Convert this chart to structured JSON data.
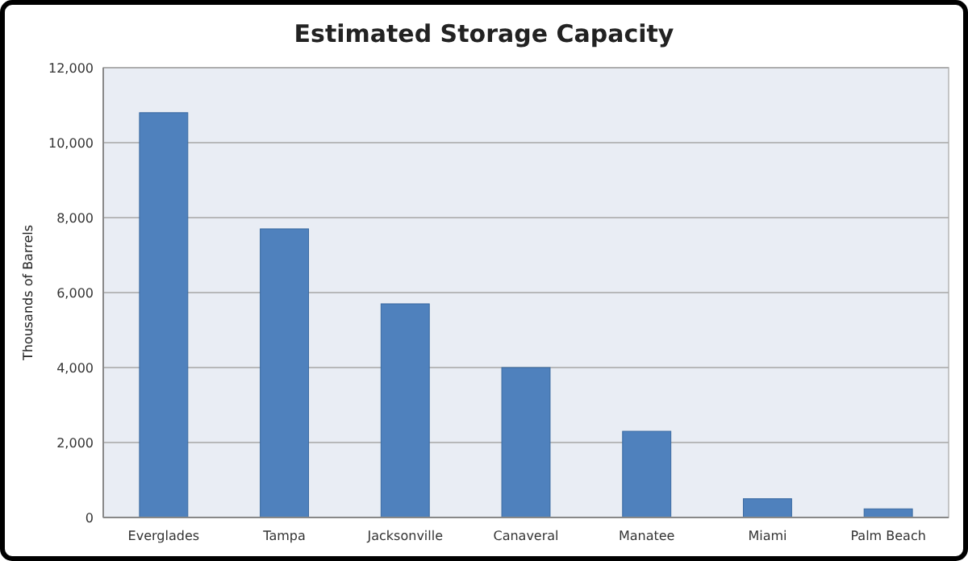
{
  "chart_data": {
    "type": "bar",
    "title": "Estimated Storage Capacity",
    "ylabel": "Thousands of Barrels",
    "categories": [
      "Everglades",
      "Tampa",
      "Jacksonville",
      "Canaveral",
      "Manatee",
      "Miami",
      "Palm Beach"
    ],
    "values": [
      10800,
      7700,
      5700,
      4000,
      2300,
      500,
      230
    ],
    "color": "#4f81bd",
    "ylim": [
      0,
      12000
    ],
    "yticks": [
      {
        "value": 0,
        "label": "0"
      },
      {
        "value": 2000,
        "label": "2,000"
      },
      {
        "value": 4000,
        "label": "4,000"
      },
      {
        "value": 6000,
        "label": "6,000"
      },
      {
        "value": 8000,
        "label": "8,000"
      },
      {
        "value": 10000,
        "label": "10,000"
      },
      {
        "value": 12000,
        "label": "12,000"
      }
    ],
    "grid": "y"
  }
}
